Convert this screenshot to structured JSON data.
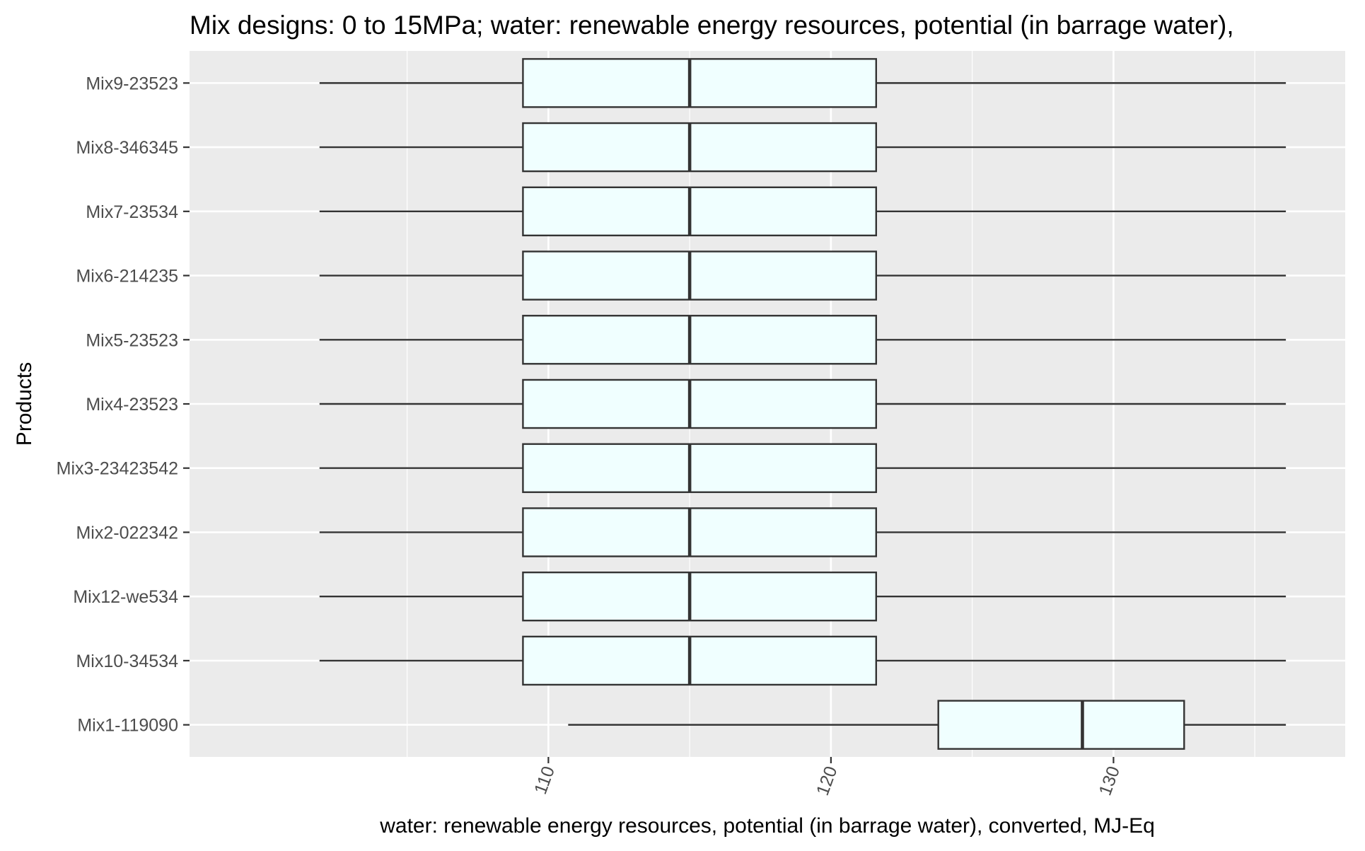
{
  "chart_data": {
    "type": "boxplot",
    "orientation": "horizontal",
    "title": "Mix designs: 0 to 15MPa; water: renewable energy resources, potential (in barrage water),",
    "xlabel": "water: renewable energy resources, potential (in barrage water), converted, MJ-Eq",
    "ylabel": "Products",
    "xlim": [
      97.3,
      138.2
    ],
    "x_ticks": [
      110,
      120,
      130
    ],
    "tick_label_rotation": -70,
    "grid": true,
    "legend": "none",
    "colors": {
      "panel_background": "#ebebeb",
      "grid_line": "#ffffff",
      "box_fill": "#f0ffff",
      "box_outline": "#333333",
      "whisker": "#333333",
      "tick_label": "#4d4d4d",
      "title": "#000000"
    },
    "categories": [
      "Mix1-119090",
      "Mix10-34534",
      "Mix12-we534",
      "Mix2-022342",
      "Mix3-23423542",
      "Mix4-23523",
      "Mix5-23523",
      "Mix6-214235",
      "Mix7-23534",
      "Mix8-346345",
      "Mix9-23523"
    ],
    "boxes": [
      {
        "category": "Mix1-119090",
        "min": 110.7,
        "q1": 123.8,
        "median": 128.9,
        "q3": 132.5,
        "max": 136.1
      },
      {
        "category": "Mix10-34534",
        "min": 101.9,
        "q1": 109.1,
        "median": 115.0,
        "q3": 121.6,
        "max": 136.1
      },
      {
        "category": "Mix12-we534",
        "min": 101.9,
        "q1": 109.1,
        "median": 115.0,
        "q3": 121.6,
        "max": 136.1
      },
      {
        "category": "Mix2-022342",
        "min": 101.9,
        "q1": 109.1,
        "median": 115.0,
        "q3": 121.6,
        "max": 136.1
      },
      {
        "category": "Mix3-23423542",
        "min": 101.9,
        "q1": 109.1,
        "median": 115.0,
        "q3": 121.6,
        "max": 136.1
      },
      {
        "category": "Mix4-23523",
        "min": 101.9,
        "q1": 109.1,
        "median": 115.0,
        "q3": 121.6,
        "max": 136.1
      },
      {
        "category": "Mix5-23523",
        "min": 101.9,
        "q1": 109.1,
        "median": 115.0,
        "q3": 121.6,
        "max": 136.1
      },
      {
        "category": "Mix6-214235",
        "min": 101.9,
        "q1": 109.1,
        "median": 115.0,
        "q3": 121.6,
        "max": 136.1
      },
      {
        "category": "Mix7-23534",
        "min": 101.9,
        "q1": 109.1,
        "median": 115.0,
        "q3": 121.6,
        "max": 136.1
      },
      {
        "category": "Mix8-346345",
        "min": 101.9,
        "q1": 109.1,
        "median": 115.0,
        "q3": 121.6,
        "max": 136.1
      },
      {
        "category": "Mix9-23523",
        "min": 101.9,
        "q1": 109.1,
        "median": 115.0,
        "q3": 121.6,
        "max": 136.1
      }
    ]
  }
}
